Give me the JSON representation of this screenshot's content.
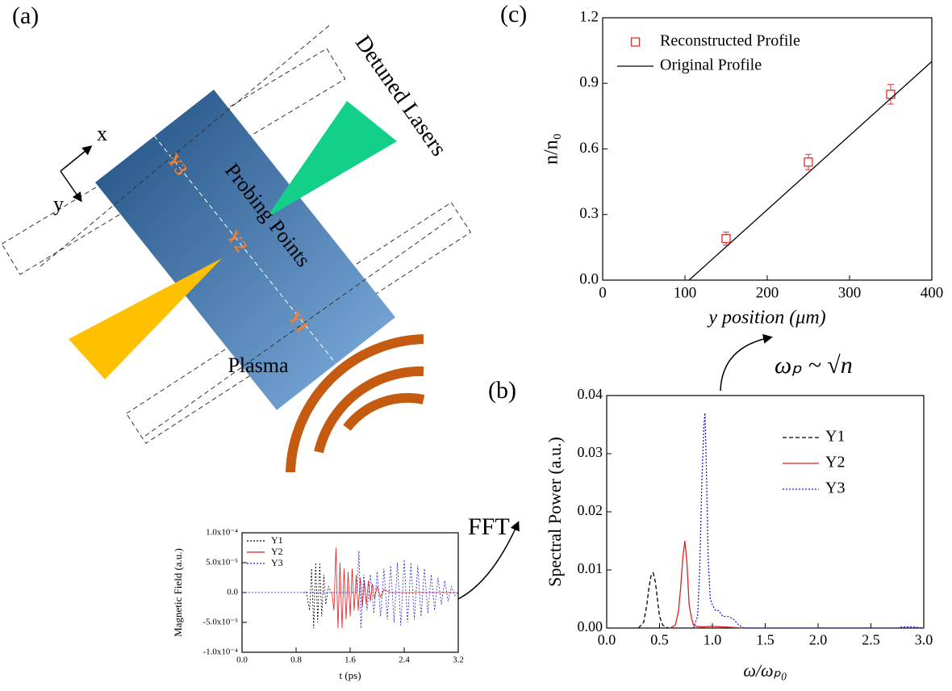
{
  "diagram": {
    "panel_a": "(a)",
    "panel_b": "(b)",
    "panel_c": "(c)",
    "detuned": "Detuned Lasers",
    "probing": "Probing Points",
    "plasma": "Plasma",
    "x_axis": "x",
    "y_axis": "y",
    "y1": "Y1",
    "y2": "Y2",
    "y3": "Y3",
    "fft": "FFT",
    "relation": "ωₚ ~ √n"
  },
  "chart_data": [
    {
      "type": "scatter",
      "xlabel": "y position (μm)",
      "ylabel": "n/n₀",
      "legend": "upper left",
      "xlim": [
        0,
        400
      ],
      "xticks": [
        0,
        100,
        200,
        300,
        400
      ],
      "ylim": [
        0,
        1.2
      ],
      "yticks": [
        {
          "value": 0,
          "label": "0.0"
        },
        0.3,
        0.6,
        0.9,
        1.2
      ],
      "series": [
        {
          "name": "Reconstructed Profile",
          "color": "#e03030",
          "marker": "square",
          "x": [
            150,
            250,
            350
          ],
          "values": [
            0.19,
            0.54,
            0.85
          ],
          "errors": [
            0.03,
            0.035,
            0.045
          ]
        },
        {
          "name": "Original Profile",
          "color": "#000000",
          "type": "line",
          "dash": "solid",
          "x": [
            105,
            400
          ],
          "values": [
            0,
            1.0
          ]
        }
      ]
    },
    {
      "type": "line",
      "xlabel": "ω/ωₚ₀",
      "ylabel": "Spectral Power (a.u.)",
      "legend": "upper right",
      "xlim": [
        0,
        3
      ],
      "xticks": [
        {
          "value": 0,
          "label": "0.0"
        },
        0.5,
        {
          "value": 1,
          "label": "1.0"
        },
        1.5,
        {
          "value": 2,
          "label": "2.0"
        },
        2.5,
        {
          "value": 3,
          "label": "3.0"
        }
      ],
      "ylim": [
        0,
        0.04
      ],
      "yticks": [
        {
          "value": 0,
          "label": "0.00"
        },
        0.01,
        0.02,
        0.03,
        0.04
      ],
      "series": [
        {
          "name": "Y1",
          "color": "#000000",
          "dash": "dashed",
          "x": [
            0.3,
            0.35,
            0.38,
            0.4,
            0.42,
            0.44,
            0.46,
            0.48,
            0.5,
            0.53,
            0.58
          ],
          "values": [
            0,
            0.001,
            0.004,
            0.007,
            0.009,
            0.0095,
            0.008,
            0.005,
            0.002,
            0.0005,
            0
          ]
        },
        {
          "name": "Y2",
          "color": "#e02020",
          "dash": "solid",
          "x": [
            0.6,
            0.65,
            0.68,
            0.7,
            0.72,
            0.74,
            0.76,
            0.78,
            0.8,
            0.82,
            0.85,
            0.9,
            1.0,
            1.2,
            1.3
          ],
          "values": [
            0,
            0.0005,
            0.003,
            0.007,
            0.012,
            0.015,
            0.011,
            0.004,
            0.002,
            0.0005,
            0.0003,
            0.0002,
            0.0003,
            0.0001,
            0
          ]
        },
        {
          "name": "Y3",
          "color": "#2020e0",
          "dash": "dotted",
          "x": [
            0.82,
            0.86,
            0.88,
            0.9,
            0.92,
            0.93,
            0.94,
            0.96,
            0.98,
            1.0,
            1.03,
            1.06,
            1.1,
            1.15,
            1.2,
            1.25,
            1.3,
            2.75,
            2.8,
            2.9,
            3.0
          ],
          "values": [
            0,
            0.002,
            0.01,
            0.025,
            0.035,
            0.037,
            0.03,
            0.012,
            0.005,
            0.004,
            0.003,
            0.003,
            0.002,
            0.002,
            0.0015,
            0.0005,
            0,
            0,
            0.0002,
            0.0002,
            0
          ]
        }
      ]
    },
    {
      "type": "line",
      "xlabel": "t (ps)",
      "ylabel": "Magnetic Field (a.u.)",
      "legend": "upper left",
      "xlim": [
        0,
        3.2
      ],
      "xticks": [
        {
          "value": 0,
          "label": "0.0"
        },
        0.8,
        1.6,
        2.4,
        3.2
      ],
      "ylim": [
        -0.0001,
        0.0001
      ],
      "yticks": [
        {
          "value": -0.0001,
          "label": "-1.0x10⁻⁴"
        },
        {
          "value": -5e-05,
          "label": "-5.0x10⁻⁵"
        },
        {
          "value": 0,
          "label": "0.0"
        },
        {
          "value": 5e-05,
          "label": "5.0x10⁻⁵"
        },
        {
          "value": 0.0001,
          "label": "1.0x10⁻⁴"
        }
      ],
      "series": [
        {
          "name": "Y1",
          "color": "#000000",
          "dash": "dotted",
          "x": [
            0.9,
            0.95,
            1.0,
            1.03,
            1.06,
            1.09,
            1.12,
            1.15,
            1.18,
            1.21,
            1.24,
            1.28,
            1.32
          ],
          "values": [
            0,
            1e-06,
            -3e-05,
            4e-05,
            -6e-05,
            5e-05,
            -5e-05,
            5e-05,
            -4e-05,
            3e-05,
            -2e-05,
            1e-05,
            0
          ]
        },
        {
          "name": "Y2",
          "color": "#e02020",
          "dash": "solid",
          "x": [
            1.33,
            1.36,
            1.39,
            1.42,
            1.45,
            1.48,
            1.51,
            1.54,
            1.57,
            1.6,
            1.63,
            1.66,
            1.69,
            1.72,
            1.75,
            1.78,
            1.81,
            1.84,
            1.87,
            1.9,
            1.93,
            1.96,
            2.0,
            2.05,
            2.1,
            2.2,
            2.4,
            2.8,
            3.2
          ],
          "values": [
            0,
            -3e-05,
            7.5e-05,
            -6e-05,
            5e-05,
            -6e-05,
            4e-05,
            -4.5e-05,
            3.5e-05,
            -4e-05,
            4e-05,
            -3e-05,
            3e-05,
            -3e-05,
            2.5e-05,
            -2.5e-05,
            2e-05,
            -2e-05,
            2e-05,
            -1.5e-05,
            1.5e-05,
            -1e-05,
            1e-05,
            -8e-06,
            5e-06,
            0,
            0,
            0,
            0
          ]
        },
        {
          "name": "Y3",
          "color": "#2020e0",
          "dash": "dotted",
          "x": [
            0,
            1.7,
            1.73,
            1.76,
            1.8,
            1.85,
            1.9,
            1.95,
            2.0,
            2.05,
            2.1,
            2.15,
            2.2,
            2.25,
            2.3,
            2.35,
            2.4,
            2.45,
            2.5,
            2.55,
            2.6,
            2.65,
            2.7,
            2.75,
            2.8,
            2.85,
            2.9,
            2.95,
            3.0,
            3.05,
            3.1,
            3.15,
            3.2
          ],
          "values": [
            0,
            0,
            7e-05,
            -6e-05,
            3e-05,
            -3e-05,
            3e-05,
            -3.5e-05,
            3.5e-05,
            -4e-05,
            4e-05,
            -4.5e-05,
            4.5e-05,
            -5e-05,
            5e-05,
            -5.5e-05,
            5.5e-05,
            -5e-05,
            5e-05,
            -4.5e-05,
            4.5e-05,
            -4e-05,
            4e-05,
            -3.5e-05,
            3e-05,
            -3e-05,
            2.5e-05,
            -2e-05,
            2e-05,
            -1.5e-05,
            1e-05,
            -5e-06,
            0
          ]
        }
      ]
    }
  ]
}
